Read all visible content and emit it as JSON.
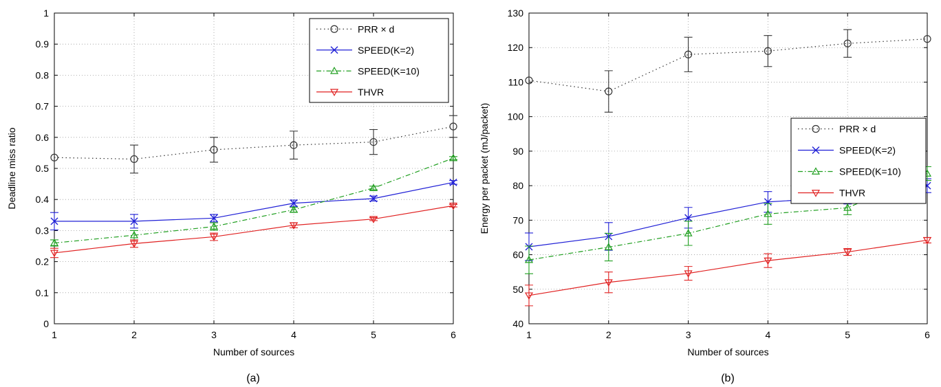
{
  "chart_data": [
    {
      "type": "line",
      "caption": "(a)",
      "xlabel": "Number of sources",
      "ylabel": "Deadline miss ratio",
      "xlim": [
        1,
        6
      ],
      "ylim": [
        0,
        1
      ],
      "xticks": [
        "1",
        "2",
        "3",
        "4",
        "5",
        "6"
      ],
      "yticks": [
        "0",
        "0.1",
        "0.2",
        "0.3",
        "0.4",
        "0.5",
        "0.6",
        "0.7",
        "0.8",
        "0.9",
        "1"
      ],
      "grid": true,
      "legend": "top-right",
      "x": [
        1,
        2,
        3,
        4,
        5,
        6
      ],
      "series": [
        {
          "name": "PRR × d",
          "color": "#333333",
          "dash": "dotted",
          "marker": "circle",
          "values": [
            0.535,
            0.53,
            0.56,
            0.575,
            0.585,
            0.635
          ],
          "err": [
            0,
            0.045,
            0.04,
            0.045,
            0.04,
            0.035
          ]
        },
        {
          "name": "SPEED(K=2)",
          "color": "#1f1fd6",
          "dash": "solid",
          "marker": "x",
          "values": [
            0.33,
            0.33,
            0.34,
            0.388,
            0.403,
            0.455
          ],
          "err": [
            0.028,
            0.022,
            0.012,
            0.01,
            0.008,
            0.006
          ]
        },
        {
          "name": "SPEED(K=10)",
          "color": "#1e9e1e",
          "dash": "dashdot",
          "marker": "triangle-up",
          "values": [
            0.26,
            0.285,
            0.313,
            0.367,
            0.437,
            0.533
          ],
          "err": [
            0.01,
            0.015,
            0.012,
            0.008,
            0.006,
            0.005
          ]
        },
        {
          "name": "THVR",
          "color": "#e02020",
          "dash": "solid",
          "marker": "triangle-down",
          "values": [
            0.228,
            0.258,
            0.28,
            0.317,
            0.337,
            0.38
          ],
          "err": [
            0.015,
            0.012,
            0.012,
            0.008,
            0.005,
            0.004
          ]
        }
      ]
    },
    {
      "type": "line",
      "caption": "(b)",
      "xlabel": "Number of sources",
      "ylabel": "Energy per packet (mJ/packet)",
      "xlim": [
        1,
        6
      ],
      "ylim": [
        40,
        130
      ],
      "xticks": [
        "1",
        "2",
        "3",
        "4",
        "5",
        "6"
      ],
      "yticks": [
        "40",
        "50",
        "60",
        "70",
        "80",
        "90",
        "100",
        "110",
        "120",
        "130"
      ],
      "grid": true,
      "legend": "right",
      "x": [
        1,
        2,
        3,
        4,
        5,
        6
      ],
      "series": [
        {
          "name": "PRR × d",
          "color": "#333333",
          "dash": "dotted",
          "marker": "circle",
          "values": [
            110.5,
            107.3,
            118,
            119,
            121.2,
            122.5
          ],
          "err": [
            0,
            6,
            5,
            4.5,
            4,
            0
          ]
        },
        {
          "name": "SPEED(K=2)",
          "color": "#1f1fd6",
          "dash": "solid",
          "marker": "x",
          "values": [
            62.3,
            65.3,
            70.7,
            75.3,
            76.7,
            80
          ],
          "err": [
            4,
            4,
            3,
            3,
            2,
            2
          ]
        },
        {
          "name": "SPEED(K=10)",
          "color": "#1e9e1e",
          "dash": "dashdot",
          "marker": "triangle-up",
          "values": [
            58.5,
            62.2,
            66.2,
            71.8,
            73.6,
            83.5
          ],
          "err": [
            4,
            4,
            3.5,
            3,
            2,
            2
          ]
        },
        {
          "name": "THVR",
          "color": "#e02020",
          "dash": "solid",
          "marker": "triangle-down",
          "values": [
            48.2,
            52,
            54.6,
            58.3,
            60.8,
            64.2
          ],
          "err": [
            3,
            3,
            2,
            2,
            1,
            0.8
          ]
        }
      ]
    }
  ]
}
